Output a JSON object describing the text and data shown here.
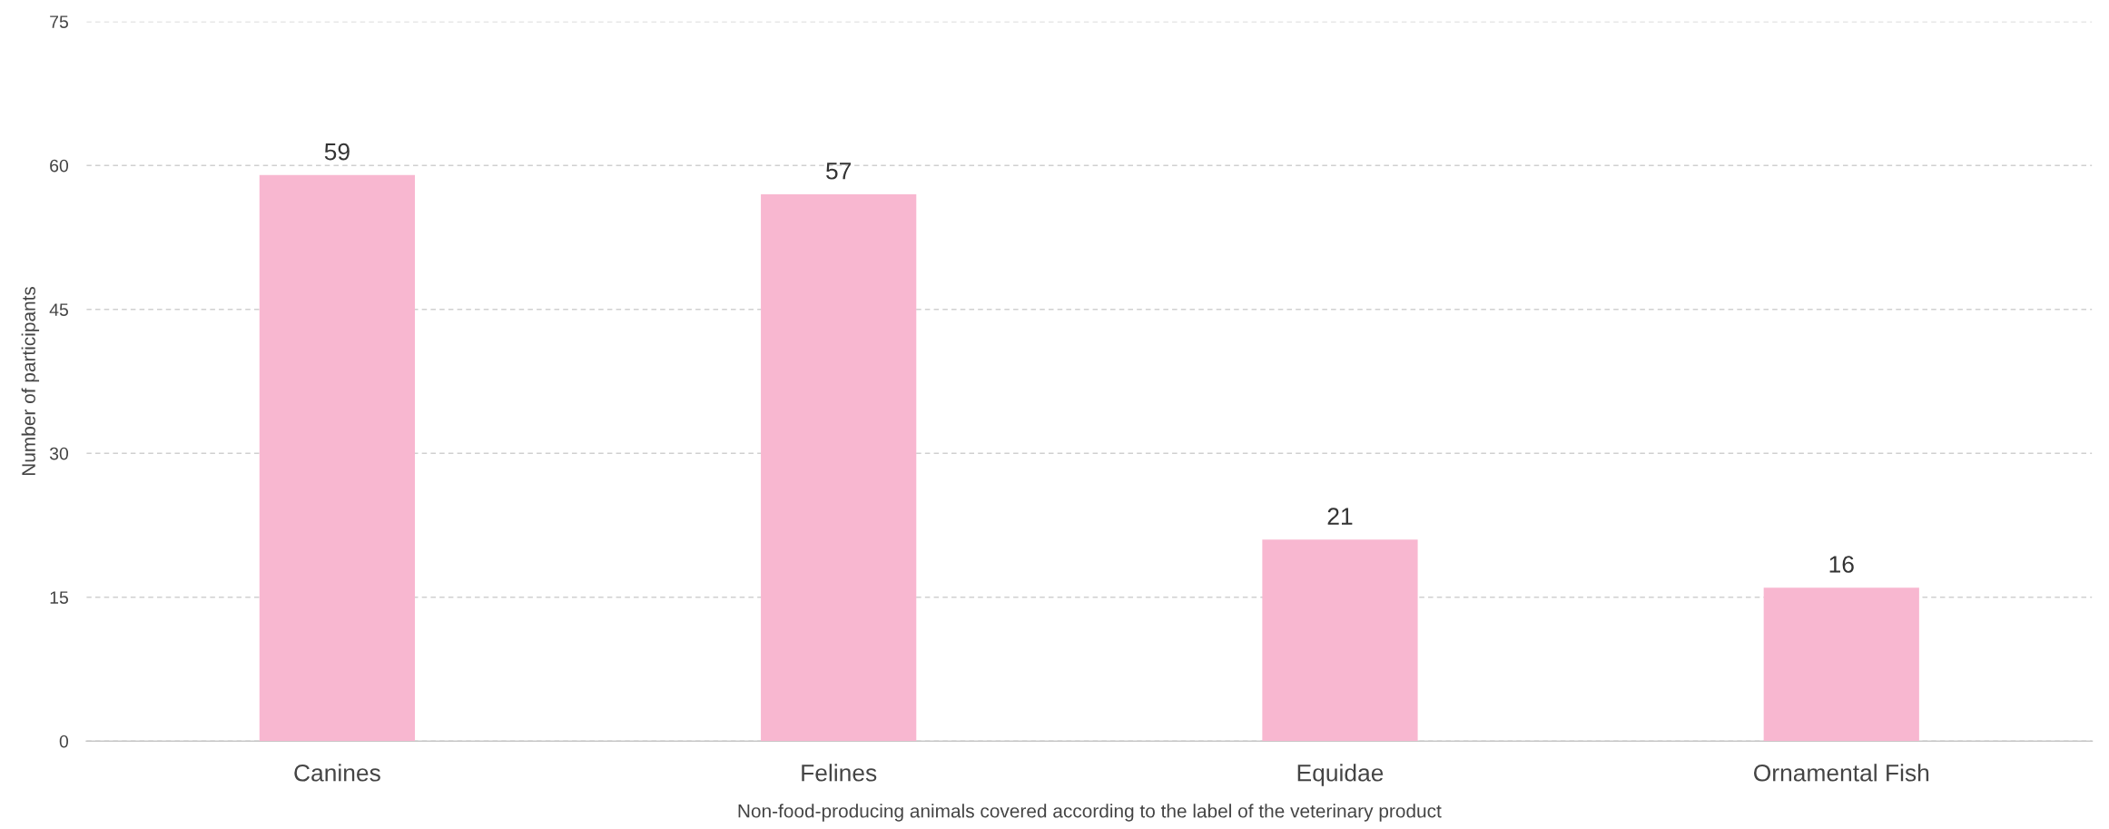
{
  "chart_data": {
    "type": "bar",
    "xlabel": "Non-food-producing animals covered according to the label of the veterinary product",
    "ylabel": "Number of participants",
    "categories": [
      "Canines",
      "Felines",
      "Equidae",
      "Ornamental Fish"
    ],
    "values": [
      59,
      57,
      21,
      16
    ],
    "color": "#f8b7d0",
    "ylim": [
      0,
      75
    ],
    "yticks": [
      0,
      15,
      30,
      45,
      60,
      75
    ],
    "grid": "y",
    "data_labels": true
  }
}
